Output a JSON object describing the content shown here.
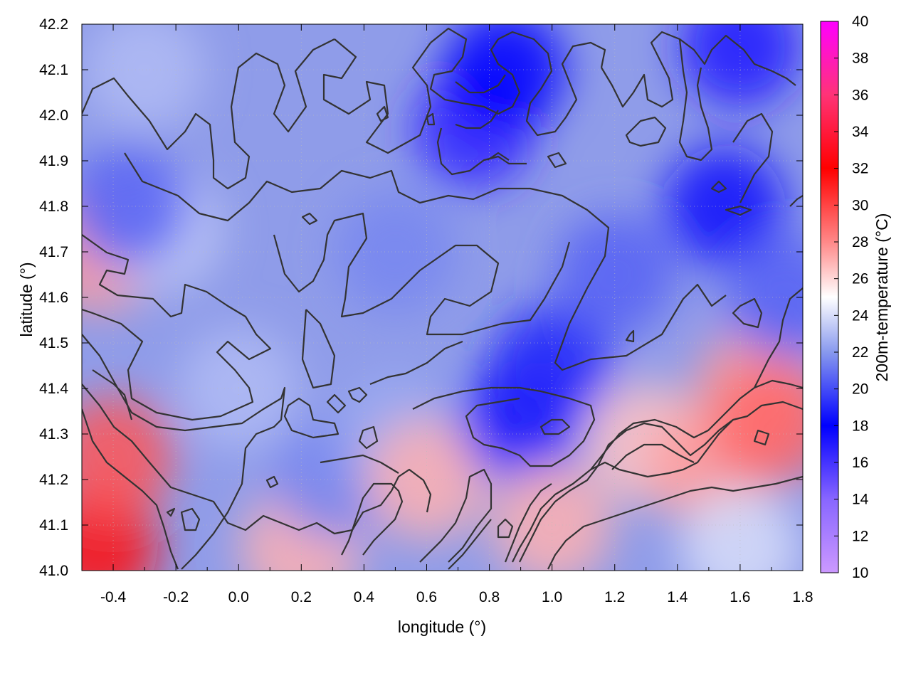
{
  "chart_data": {
    "type": "heatmap",
    "title": "",
    "xlabel": "longitude (°)",
    "ylabel": "latitude (°)",
    "colorbar_label": "200m-temperature (°C)",
    "xlim": [
      -0.5,
      1.8
    ],
    "ylim": [
      41.0,
      42.2
    ],
    "zlim": [
      10,
      40
    ],
    "x_ticks": [
      -0.4,
      -0.2,
      0.0,
      0.2,
      0.4,
      0.6,
      0.8,
      1.0,
      1.2,
      1.4,
      1.6,
      1.8
    ],
    "x_tick_labels": [
      "-0.4",
      "-0.2",
      "0.0",
      "0.2",
      "0.4",
      "0.6",
      "0.8",
      "1.0",
      "1.2",
      "1.4",
      "1.6",
      "1.8"
    ],
    "y_ticks": [
      41.0,
      41.1,
      41.2,
      41.3,
      41.4,
      41.5,
      41.6,
      41.7,
      41.8,
      41.9,
      42.0,
      42.1,
      42.2
    ],
    "y_tick_labels": [
      "41.0",
      "41.1",
      "41.2",
      "41.3",
      "41.4",
      "41.5",
      "41.6",
      "41.7",
      "41.8",
      "41.9",
      "42.0",
      "42.1",
      "42.2"
    ],
    "colorbar_ticks": [
      10,
      12,
      14,
      16,
      18,
      20,
      22,
      24,
      26,
      28,
      30,
      32,
      34,
      36,
      38,
      40
    ],
    "colorbar_tick_labels": [
      "10",
      "12",
      "14",
      "16",
      "18",
      "20",
      "22",
      "24",
      "26",
      "28",
      "30",
      "32",
      "34",
      "36",
      "38",
      "40"
    ],
    "colormap": [
      {
        "value": 10,
        "color": "#cc99ff"
      },
      {
        "value": 14,
        "color": "#8866ff"
      },
      {
        "value": 18,
        "color": "#0000ff"
      },
      {
        "value": 22,
        "color": "#8899ee"
      },
      {
        "value": 25,
        "color": "#ffffff"
      },
      {
        "value": 28,
        "color": "#ff8888"
      },
      {
        "value": 32,
        "color": "#ff0000"
      },
      {
        "value": 36,
        "color": "#ff3377"
      },
      {
        "value": 40,
        "color": "#ff00ff"
      }
    ],
    "contour_color": "#333333",
    "grid": true,
    "field_samples": [
      {
        "lon": -0.45,
        "lat": 41.05,
        "value": 31.5
      },
      {
        "lon": -0.4,
        "lat": 41.25,
        "value": 29.5
      },
      {
        "lon": -0.45,
        "lat": 41.7,
        "value": 27.5
      },
      {
        "lon": -0.25,
        "lat": 41.75,
        "value": 23.5
      },
      {
        "lon": -0.35,
        "lat": 41.8,
        "value": 20.5
      },
      {
        "lon": -0.3,
        "lat": 42.1,
        "value": 23.0
      },
      {
        "lon": 0.0,
        "lat": 41.4,
        "value": 23.0
      },
      {
        "lon": 0.2,
        "lat": 41.05,
        "value": 27.0
      },
      {
        "lon": 0.3,
        "lat": 41.2,
        "value": 21.5
      },
      {
        "lon": 0.5,
        "lat": 41.3,
        "value": 22.5
      },
      {
        "lon": 0.5,
        "lat": 41.7,
        "value": 21.5
      },
      {
        "lon": 0.6,
        "lat": 41.2,
        "value": 27.0
      },
      {
        "lon": 0.75,
        "lat": 41.97,
        "value": 16.5
      },
      {
        "lon": 0.85,
        "lat": 42.1,
        "value": 18.0
      },
      {
        "lon": 0.9,
        "lat": 41.33,
        "value": 18.5
      },
      {
        "lon": 1.0,
        "lat": 41.45,
        "value": 19.0
      },
      {
        "lon": 1.0,
        "lat": 41.1,
        "value": 27.0
      },
      {
        "lon": 1.2,
        "lat": 41.65,
        "value": 20.5
      },
      {
        "lon": 1.3,
        "lat": 41.28,
        "value": 26.5
      },
      {
        "lon": 1.5,
        "lat": 41.23,
        "value": 27.5
      },
      {
        "lon": 1.55,
        "lat": 41.8,
        "value": 18.5
      },
      {
        "lon": 1.6,
        "lat": 42.15,
        "value": 17.0
      },
      {
        "lon": 1.6,
        "lat": 41.05,
        "value": 24.0
      },
      {
        "lon": 1.65,
        "lat": 41.4,
        "value": 27.5
      },
      {
        "lon": 1.7,
        "lat": 41.32,
        "value": 29.0
      },
      {
        "lon": 1.75,
        "lat": 41.6,
        "value": 20.5
      }
    ]
  }
}
